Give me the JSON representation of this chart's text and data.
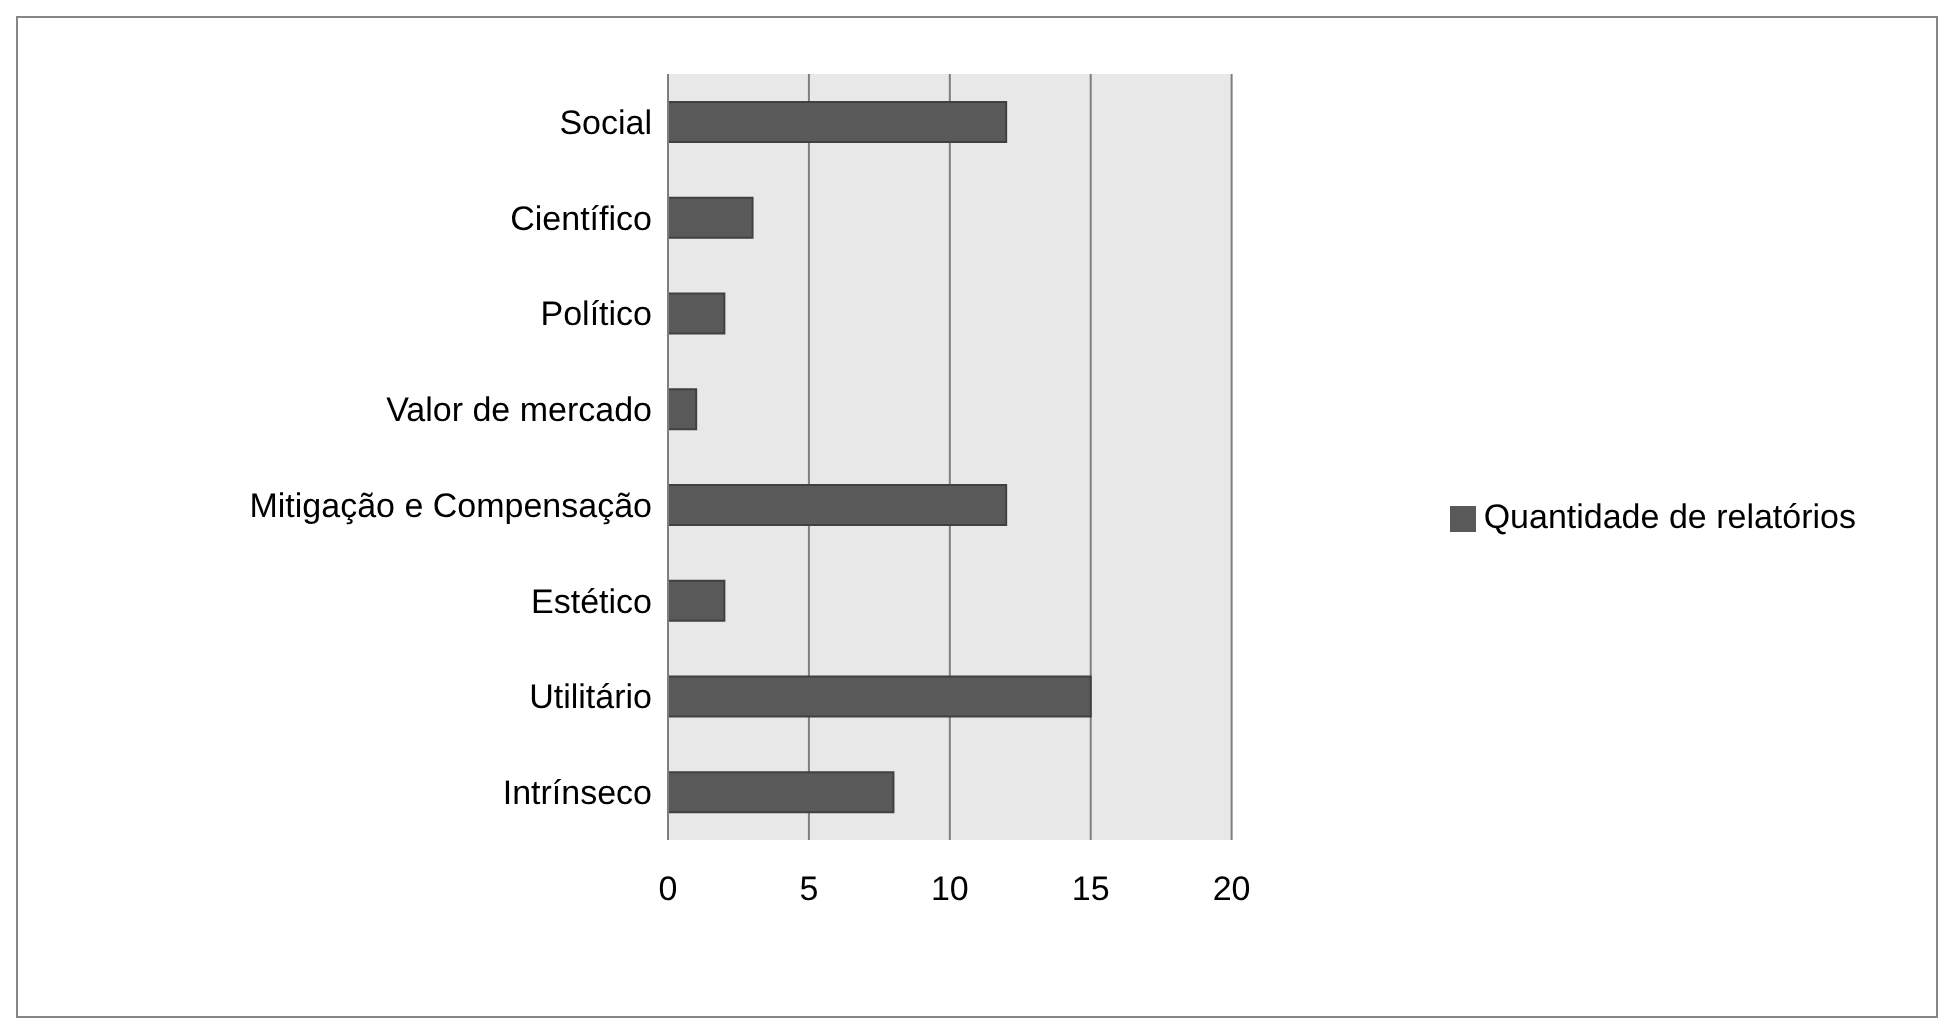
{
  "chart_data": {
    "type": "bar",
    "orientation": "horizontal",
    "categories": [
      "Social",
      "Científico",
      "Político",
      "Valor de mercado",
      "Mitigação e Compensação",
      "Estético",
      "Utilitário",
      "Intrínseco"
    ],
    "series": [
      {
        "name": "Quantidade de relatórios",
        "color": "#595959",
        "values": [
          12,
          3,
          2,
          1,
          12,
          2,
          15,
          8
        ]
      }
    ],
    "xlim": [
      0,
      20
    ],
    "xticks": [
      0,
      5,
      10,
      15,
      20
    ],
    "grid": "x",
    "legend": "right"
  }
}
